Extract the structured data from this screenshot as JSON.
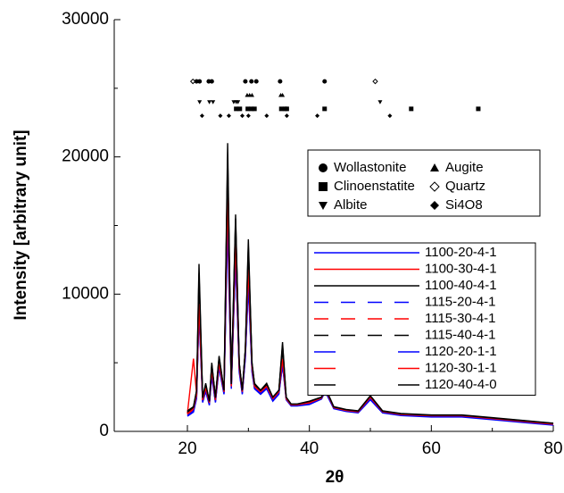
{
  "chart_data": {
    "type": "line",
    "y_label": "Intensity [arbitrary unit]",
    "x_label": "2θ",
    "xlim": [
      8,
      80
    ],
    "xticks": [
      20,
      40,
      60,
      80
    ],
    "xminorticks": [
      30,
      50,
      70
    ],
    "ylim": [
      0,
      30000
    ],
    "yticks": [
      0,
      10000,
      20000,
      30000
    ],
    "yminorticks": [
      5000,
      15000,
      25000
    ],
    "x": [
      20,
      21,
      21.5,
      21.9,
      22.5,
      23,
      23.6,
      24,
      24.6,
      25.2,
      26,
      26.6,
      27.2,
      27.9,
      28.5,
      29,
      29.5,
      30,
      30.6,
      31,
      32,
      33,
      34,
      35,
      35.6,
      36.2,
      37,
      38,
      40,
      42,
      42.6,
      44,
      46,
      48,
      50,
      52,
      55,
      60,
      65,
      70,
      75,
      80
    ],
    "series": [
      {
        "name": "1100-20-4-1",
        "color": "#0000ff",
        "line_style": "solid",
        "values": [
          1200,
          1500,
          2500,
          9000,
          2200,
          3000,
          2000,
          4200,
          2200,
          4800,
          2800,
          16000,
          3200,
          13000,
          4500,
          2800,
          5500,
          11000,
          4500,
          3200,
          2800,
          3200,
          2300,
          2800,
          5000,
          2400,
          1900,
          1900,
          2000,
          2400,
          3000,
          1700,
          1500,
          1400,
          2400,
          1400,
          1200,
          1100,
          1100,
          900,
          700,
          500
        ]
      },
      {
        "name": "1100-30-4-1",
        "color": "#ff0000",
        "line_style": "solid",
        "values": [
          1300,
          5300,
          2700,
          9500,
          2300,
          3200,
          2100,
          4500,
          2300,
          5000,
          2900,
          17500,
          3300,
          14000,
          4700,
          2900,
          5800,
          12000,
          4700,
          3300,
          2900,
          3300,
          2400,
          2900,
          5300,
          2400,
          1950,
          1950,
          2100,
          2450,
          3100,
          1750,
          1550,
          1450,
          2500,
          1450,
          1250,
          1150,
          1150,
          950,
          750,
          550
        ]
      },
      {
        "name": "1100-40-4-1",
        "color": "#000000",
        "line_style": "solid",
        "values": [
          1500,
          1800,
          3000,
          12200,
          2500,
          3500,
          2200,
          5000,
          2500,
          5500,
          3000,
          21000,
          3500,
          15800,
          5000,
          3000,
          6000,
          14000,
          5000,
          3500,
          3000,
          3500,
          2500,
          3000,
          6500,
          2500,
          2000,
          2000,
          2200,
          2500,
          3200,
          1800,
          1600,
          1500,
          2600,
          1500,
          1300,
          1200,
          1200,
          1000,
          800,
          600
        ]
      },
      {
        "name": "1115-20-4-1",
        "color": "#0000ff",
        "line_style": "dashed",
        "values": [
          1100,
          1400,
          2400,
          8500,
          2100,
          2900,
          1900,
          4000,
          2100,
          4600,
          2700,
          15000,
          3100,
          12500,
          4300,
          2700,
          5300,
          10500,
          4300,
          3100,
          2700,
          3100,
          2200,
          2700,
          4800,
          2300,
          1850,
          1850,
          1950,
          2350,
          2900,
          1650,
          1450,
          1350,
          2300,
          1350,
          1150,
          1050,
          1050,
          850,
          650,
          450
        ]
      },
      {
        "name": "1115-30-4-1",
        "color": "#ff0000",
        "line_style": "dashed",
        "values": [
          1250,
          1600,
          2600,
          9200,
          2250,
          3100,
          2050,
          4400,
          2250,
          4900,
          2850,
          17000,
          3250,
          13500,
          4600,
          2850,
          5700,
          11500,
          4600,
          3250,
          2850,
          3250,
          2350,
          2850,
          5200,
          2350,
          1900,
          1900,
          2050,
          2400,
          3050,
          1700,
          1500,
          1400,
          2450,
          1400,
          1200,
          1100,
          1100,
          900,
          700,
          500
        ]
      },
      {
        "name": "1115-40-4-1",
        "color": "#000000",
        "line_style": "dashed",
        "values": [
          1400,
          1700,
          2900,
          11000,
          2400,
          3400,
          2150,
          4800,
          2400,
          5300,
          2950,
          19500,
          3400,
          15000,
          4900,
          2950,
          5900,
          13000,
          4900,
          3400,
          2950,
          3400,
          2450,
          2950,
          6000,
          2450,
          1950,
          1950,
          2150,
          2450,
          3150,
          1750,
          1550,
          1450,
          2550,
          1450,
          1250,
          1150,
          1150,
          950,
          750,
          550
        ]
      },
      {
        "name": "1120-20-1-1",
        "color": "#0000ff",
        "line_style": "gapped",
        "values": [
          1150,
          1450,
          2450,
          8800,
          2150,
          2950,
          1950,
          4100,
          2150,
          4700,
          2750,
          15500,
          3150,
          12800,
          4400,
          2750,
          5400,
          10800,
          4400,
          3150,
          2750,
          3150,
          2250,
          2750,
          4900,
          2350,
          1880,
          1880,
          1980,
          2380,
          2950,
          1680,
          1480,
          1380,
          2350,
          1380,
          1180,
          1080,
          1080,
          880,
          680,
          480
        ]
      },
      {
        "name": "1120-30-1-1",
        "color": "#ff0000",
        "line_style": "gapped",
        "values": [
          1280,
          1650,
          2650,
          9300,
          2280,
          3150,
          2080,
          4450,
          2280,
          4950,
          2880,
          17200,
          3280,
          13800,
          4650,
          2880,
          5750,
          11800,
          4650,
          3280,
          2880,
          3280,
          2380,
          2880,
          5250,
          2380,
          1930,
          1930,
          2080,
          2430,
          3080,
          1730,
          1530,
          1430,
          2480,
          1430,
          1230,
          1130,
          1130,
          930,
          730,
          530
        ]
      },
      {
        "name": "1120-40-4-0",
        "color": "#000000",
        "line_style": "gapped",
        "values": [
          1450,
          1750,
          2950,
          11500,
          2450,
          3450,
          2180,
          4900,
          2450,
          5400,
          2980,
          20000,
          3450,
          15500,
          4950,
          2980,
          5950,
          13500,
          4950,
          3450,
          2980,
          3450,
          2480,
          2980,
          6300,
          2480,
          1980,
          1980,
          2180,
          2480,
          3180,
          1780,
          1580,
          1480,
          2580,
          1480,
          1280,
          1180,
          1180,
          980,
          780,
          580
        ]
      }
    ],
    "markers": [
      {
        "name": "Wollastonite",
        "shape": "circle",
        "x": [
          21.5,
          22,
          23.5,
          24,
          29.5,
          30.5,
          31.3,
          35.2,
          42.5
        ],
        "y": [
          25500,
          25500,
          25500,
          25500,
          25500,
          25500,
          25500,
          25500,
          25500
        ]
      },
      {
        "name": "Clinoenstatite",
        "shape": "square",
        "x": [
          28,
          28.6,
          29.9,
          30.5,
          31,
          35.4,
          36,
          36.3,
          42.5,
          56.7,
          67.7
        ],
        "y": [
          23500,
          23500,
          23500,
          23500,
          23500,
          23500,
          23500,
          23500,
          23500,
          23500,
          23500
        ]
      },
      {
        "name": "Albite",
        "shape": "triangle-down",
        "x": [
          22,
          23.6,
          24.2,
          27.6,
          28,
          28.3,
          51.6
        ],
        "y": [
          24000,
          24000,
          24000,
          24000,
          24000,
          24000,
          24000
        ]
      },
      {
        "name": "Augite",
        "shape": "triangle-up",
        "x": [
          29.8,
          30.2,
          30.6,
          35.3,
          35.6
        ],
        "y": [
          24500,
          24500,
          24500,
          24500,
          24500
        ]
      },
      {
        "name": "Quartz",
        "shape": "diamond-open",
        "x": [
          20.9,
          50.8
        ],
        "y": [
          25500,
          25500
        ]
      },
      {
        "name": "Si4O8",
        "shape": "diamond",
        "x": [
          22.4,
          25.4,
          26.8,
          29,
          30,
          33,
          36.3,
          41.3,
          53.2
        ],
        "y": [
          23000,
          23000,
          23000,
          23000,
          23000,
          23000,
          23000,
          23000,
          23000
        ]
      }
    ]
  }
}
